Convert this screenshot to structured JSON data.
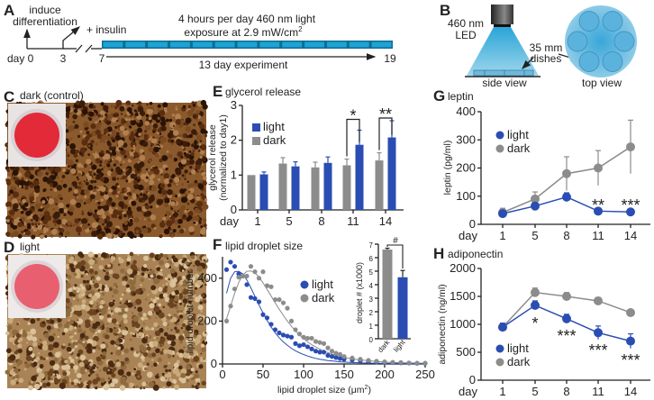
{
  "colors": {
    "light": "#2a4db3",
    "dark": "#8c8c8c",
    "led_blue": "#1ea3d4",
    "dish_red": "#e0303a"
  },
  "panelA": {
    "letter": "A",
    "induce": [
      "induce",
      "differentiation"
    ],
    "insulin": "+ insulin",
    "light_text": [
      "4 hours per day 460 nm light",
      "exposure at 2.9 mW/cm"
    ],
    "superscript": "2",
    "day_label": "day 0",
    "day3": "3",
    "day7": "7",
    "day19": "19",
    "duration": "13 day experiment",
    "exposure_blocks": 13
  },
  "panelB": {
    "letter": "B",
    "led": [
      "460 nm",
      "LED"
    ],
    "dishes": [
      "35 mm",
      "dishes"
    ],
    "side_view": "side view",
    "top_view": "top view"
  },
  "panelC": {
    "letter": "C",
    "title": "dark (control)"
  },
  "panelD": {
    "letter": "D",
    "title": "light"
  },
  "chart_data": [
    {
      "panel": "E",
      "type": "bar",
      "title": "glycerol release",
      "ylabel": [
        "glycerol release",
        "(normalized to day1)"
      ],
      "xlabel": "day",
      "categories": [
        "1",
        "5",
        "8",
        "11",
        "14"
      ],
      "ylim": [
        0,
        3
      ],
      "yticks": [
        0,
        1,
        2,
        3
      ],
      "series": [
        {
          "name": "light",
          "values": [
            1.02,
            1.25,
            1.35,
            1.87,
            2.08
          ],
          "errors": [
            0.07,
            0.13,
            0.17,
            0.42,
            0.48
          ]
        },
        {
          "name": "dark",
          "values": [
            1.0,
            1.33,
            1.22,
            1.28,
            1.42
          ],
          "errors": [
            0,
            0.17,
            0.15,
            0.18,
            0.22
          ]
        }
      ],
      "significance": [
        {
          "category": "11",
          "label": "*"
        },
        {
          "category": "14",
          "label": "**"
        }
      ],
      "legend": "top-left"
    },
    {
      "panel": "F",
      "type": "scatter",
      "title": "lipid droplet size",
      "xlabel": "lipid droplet size (μm",
      "xlabel_sup": "2",
      "xlabel_end": ")",
      "ylabel": "lipid droplet number",
      "xlim": [
        0,
        250
      ],
      "ylim": [
        0,
        500
      ],
      "xticks": [
        0,
        50,
        100,
        150,
        200,
        250
      ],
      "yticks": [
        0,
        200,
        400
      ],
      "x": [
        5,
        10,
        15,
        20,
        25,
        30,
        35,
        40,
        45,
        50,
        55,
        60,
        65,
        70,
        75,
        80,
        85,
        90,
        95,
        100,
        105,
        110,
        115,
        120,
        125,
        130,
        135,
        140,
        145,
        150,
        160,
        170,
        180,
        190,
        200,
        210,
        220,
        230,
        240,
        250
      ],
      "series": [
        {
          "name": "light",
          "values": [
            440,
            475,
            455,
            420,
            410,
            370,
            310,
            305,
            290,
            230,
            215,
            185,
            160,
            145,
            135,
            130,
            125,
            95,
            85,
            90,
            80,
            70,
            60,
            55,
            55,
            40,
            35,
            30,
            25,
            22,
            18,
            14,
            11,
            9,
            7,
            6,
            5,
            4,
            3,
            3
          ],
          "fit": [
            330,
            400,
            430,
            432,
            420,
            392,
            355,
            315,
            275,
            238,
            203,
            172,
            145,
            122,
            103,
            87,
            73,
            61,
            52,
            44,
            37,
            31,
            26,
            22,
            19,
            16,
            14,
            12,
            10,
            9,
            7,
            5,
            4,
            3,
            3,
            2,
            2,
            1,
            1,
            1
          ]
        },
        {
          "name": "dark",
          "values": [
            200,
            270,
            350,
            405,
            410,
            410,
            455,
            430,
            400,
            430,
            365,
            360,
            300,
            300,
            285,
            260,
            200,
            160,
            140,
            125,
            120,
            120,
            105,
            100,
            95,
            75,
            60,
            50,
            45,
            35,
            28,
            22,
            17,
            13,
            10,
            8,
            7,
            5,
            4,
            4
          ],
          "fit": [
            210,
            270,
            330,
            380,
            415,
            432,
            434,
            425,
            405,
            378,
            348,
            317,
            285,
            255,
            227,
            200,
            176,
            154,
            135,
            118,
            103,
            90,
            79,
            69,
            60,
            53,
            46,
            40,
            35,
            31,
            24,
            19,
            15,
            12,
            9,
            7,
            6,
            5,
            4,
            3
          ]
        }
      ],
      "legend": "center-right",
      "inset": {
        "type": "bar",
        "ylabel": "droplet # (x1000)",
        "ylim": [
          0,
          7
        ],
        "yticks": [
          0,
          1,
          2,
          3,
          4,
          5,
          6,
          7
        ],
        "categories": [
          "dark",
          "light"
        ],
        "values": [
          6.6,
          4.55
        ],
        "errors": [
          0.1,
          0.5
        ],
        "significance": "#"
      }
    },
    {
      "panel": "G",
      "type": "line",
      "title": "leptin",
      "ylabel": "leptin (pg/ml)",
      "xlabel": "day",
      "categories": [
        "1",
        "5",
        "8",
        "11",
        "14"
      ],
      "ylim": [
        0,
        400
      ],
      "yticks": [
        0,
        100,
        200,
        300,
        400
      ],
      "series": [
        {
          "name": "light",
          "values": [
            38,
            65,
            97,
            47,
            44
          ],
          "errors": [
            10,
            10,
            15,
            8,
            10
          ]
        },
        {
          "name": "dark",
          "values": [
            42,
            90,
            180,
            200,
            275
          ],
          "errors": [
            15,
            25,
            60,
            62,
            95
          ]
        }
      ],
      "significance": [
        {
          "category": "11",
          "label": "**"
        },
        {
          "category": "14",
          "label": "***"
        }
      ],
      "legend": "top-left"
    },
    {
      "panel": "H",
      "type": "line",
      "title": "adiponectin",
      "ylabel": "adiponectin (ng/ml)",
      "xlabel": "day",
      "categories": [
        "1",
        "5",
        "8",
        "11",
        "14"
      ],
      "ylim": [
        0,
        2000
      ],
      "yticks": [
        0,
        500,
        1000,
        1500,
        2000
      ],
      "series": [
        {
          "name": "light",
          "values": [
            950,
            1340,
            1100,
            850,
            700
          ],
          "errors": [
            70,
            80,
            80,
            120,
            130
          ]
        },
        {
          "name": "dark",
          "values": [
            950,
            1570,
            1500,
            1420,
            1210
          ],
          "errors": [
            70,
            80,
            70,
            60,
            40
          ]
        }
      ],
      "significance": [
        {
          "category": "5",
          "label": "*"
        },
        {
          "category": "8",
          "label": "***"
        },
        {
          "category": "11",
          "label": "***"
        },
        {
          "category": "14",
          "label": "***"
        }
      ],
      "legend": "bottom-left"
    }
  ]
}
